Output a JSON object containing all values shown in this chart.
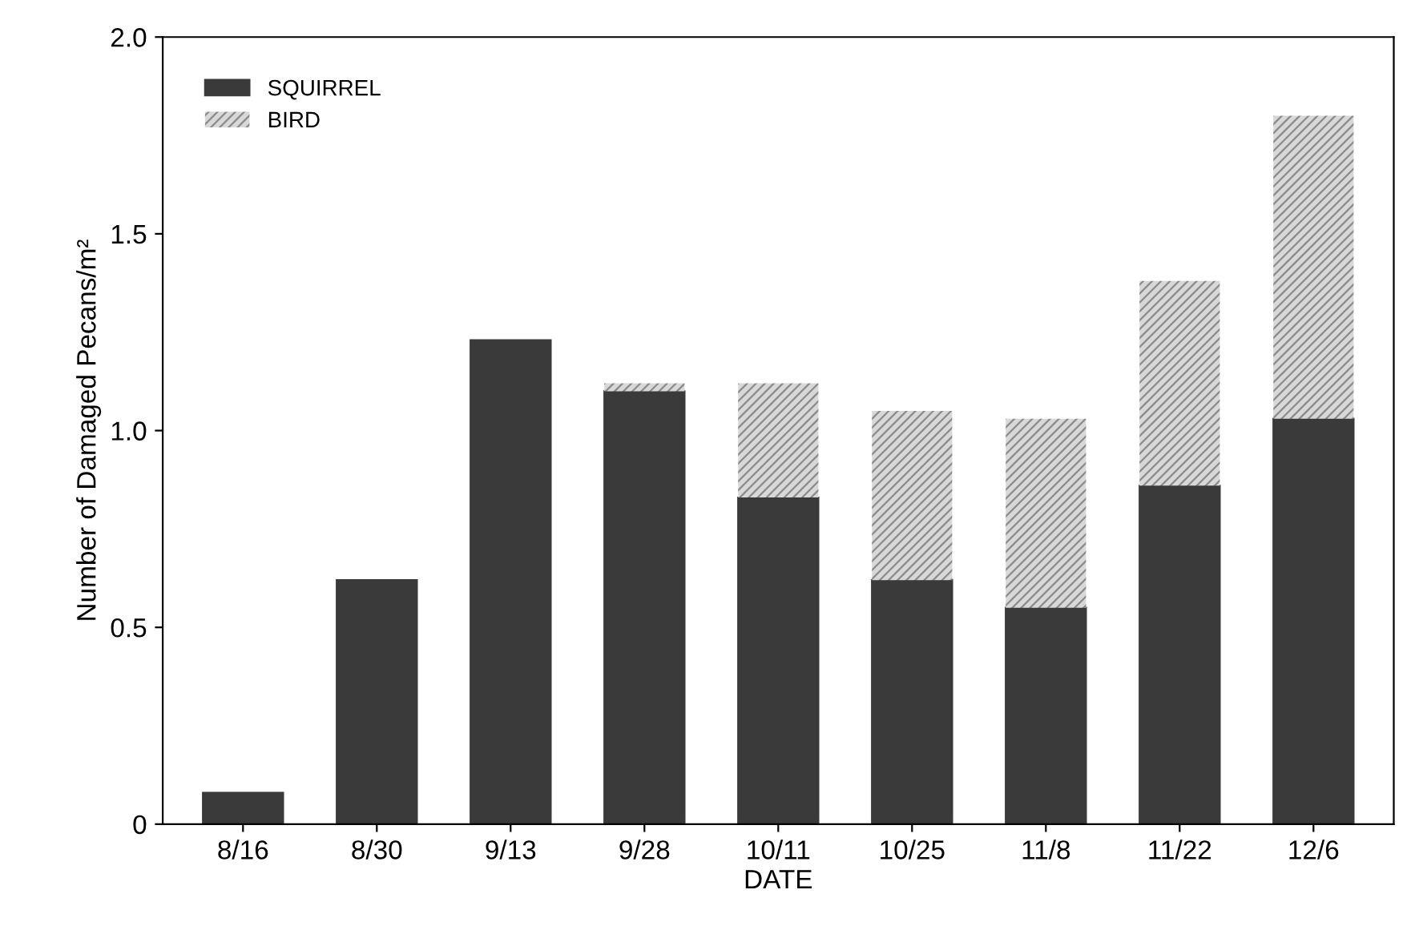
{
  "chart_data": {
    "type": "bar",
    "stacked": true,
    "xlabel": "DATE",
    "ylabel": "Number of Damaged Pecans/m²",
    "categories": [
      "8/16",
      "8/30",
      "9/13",
      "9/28",
      "10/11",
      "10/25",
      "11/8",
      "11/22",
      "12/6"
    ],
    "series": [
      {
        "name": "SQUIRREL",
        "color": "#3a3a3a",
        "values": [
          0.08,
          0.62,
          1.23,
          1.1,
          0.83,
          0.62,
          0.55,
          0.86,
          1.03
        ]
      },
      {
        "name": "BIRD",
        "color": "#d8d8d8",
        "values": [
          null,
          null,
          null,
          0.02,
          0.29,
          0.43,
          0.48,
          0.52,
          0.77
        ]
      }
    ],
    "ylim": [
      0,
      2.0
    ],
    "yticks": [
      0,
      {
        "value": 0.5,
        "label": "0.5"
      },
      {
        "value": 1.0,
        "label": "1.0"
      },
      {
        "value": 1.5,
        "label": "1.5"
      },
      {
        "value": 2.0,
        "label": "2.0"
      }
    ],
    "grid": false,
    "legend": "top left"
  }
}
